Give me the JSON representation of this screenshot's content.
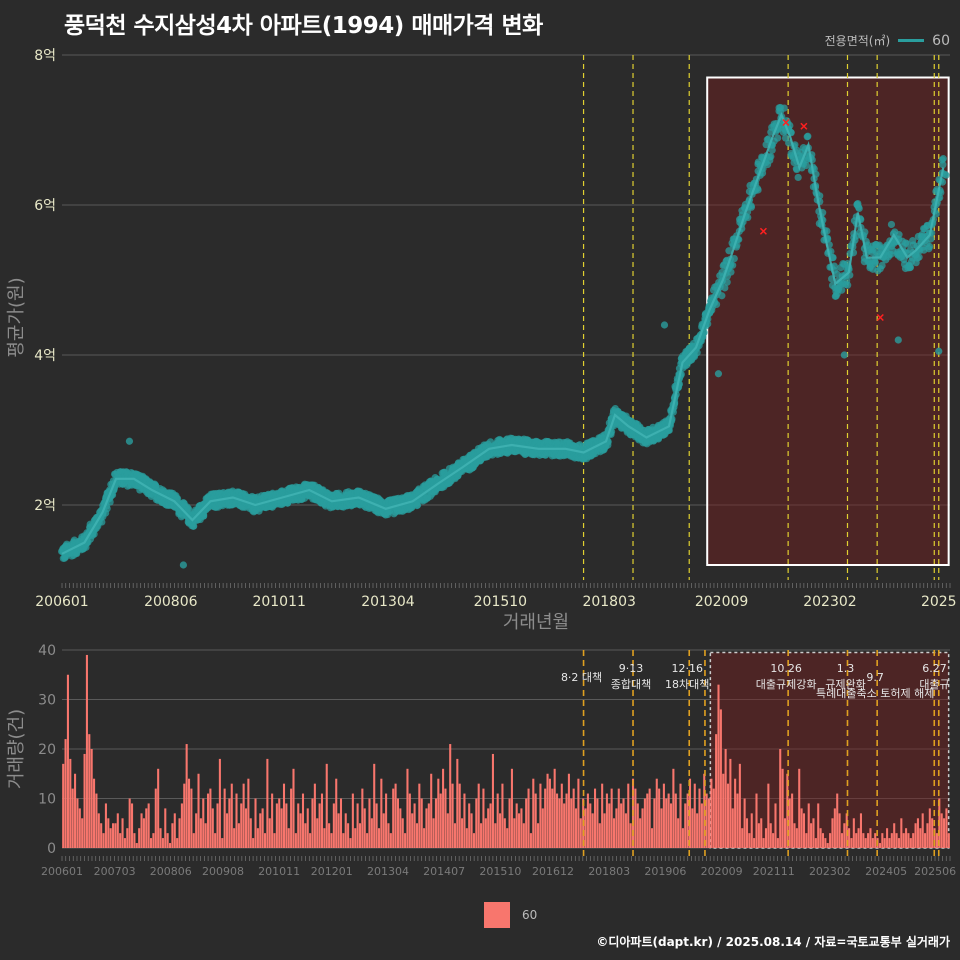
{
  "title": "풍덕천 수지삼성4차 아파트(1994) 매매가격 변화",
  "footer": "©디아파트(dapt.kr) / 2025.08.14 / 자료=국토교통부 실거래가",
  "legend": {
    "title": "전용면적(㎡)",
    "label": "60"
  },
  "chart_data": [
    {
      "type": "scatter",
      "xlabel": "거래년월",
      "ylabel": "평균가(원)",
      "ylim": [
        1.0,
        8.0
      ],
      "yticks": [
        2,
        4,
        6,
        8
      ],
      "ytick_labels": [
        "2억",
        "4억",
        "6억",
        "8억"
      ],
      "xlim": [
        2006.0,
        2025.75
      ],
      "xtick_labels": [
        "200601",
        "200806",
        "201011",
        "201304",
        "201510",
        "201803",
        "202009",
        "202302",
        "2025"
      ],
      "xticks": [
        2006.0,
        2008.42,
        2010.83,
        2013.25,
        2015.75,
        2018.17,
        2020.67,
        2023.08,
        2025.5
      ],
      "series": [
        {
          "name": "60",
          "color": "#2a9e9e",
          "trend": [
            [
              2006.0,
              1.35
            ],
            [
              2006.5,
              1.5
            ],
            [
              2006.9,
              1.9
            ],
            [
              2007.2,
              2.35
            ],
            [
              2007.6,
              2.35
            ],
            [
              2008.0,
              2.2
            ],
            [
              2008.5,
              2.05
            ],
            [
              2008.9,
              1.8
            ],
            [
              2009.3,
              2.05
            ],
            [
              2009.8,
              2.1
            ],
            [
              2010.3,
              2.0
            ],
            [
              2010.9,
              2.1
            ],
            [
              2011.5,
              2.2
            ],
            [
              2012.0,
              2.05
            ],
            [
              2012.6,
              2.1
            ],
            [
              2013.2,
              1.95
            ],
            [
              2013.8,
              2.05
            ],
            [
              2014.4,
              2.3
            ],
            [
              2014.9,
              2.5
            ],
            [
              2015.5,
              2.75
            ],
            [
              2016.0,
              2.8
            ],
            [
              2016.6,
              2.75
            ],
            [
              2017.2,
              2.75
            ],
            [
              2017.6,
              2.7
            ],
            [
              2018.1,
              2.85
            ],
            [
              2018.3,
              3.2
            ],
            [
              2018.6,
              3.05
            ],
            [
              2019.0,
              2.9
            ],
            [
              2019.5,
              3.05
            ],
            [
              2019.8,
              3.9
            ],
            [
              2020.1,
              4.1
            ],
            [
              2020.4,
              4.6
            ],
            [
              2020.7,
              5.0
            ],
            [
              2020.9,
              5.35
            ],
            [
              2021.2,
              5.9
            ],
            [
              2021.5,
              6.4
            ],
            [
              2021.8,
              6.9
            ],
            [
              2022.0,
              7.2
            ],
            [
              2022.2,
              6.9
            ],
            [
              2022.4,
              6.5
            ],
            [
              2022.6,
              6.8
            ],
            [
              2022.8,
              6.1
            ],
            [
              2023.0,
              5.5
            ],
            [
              2023.2,
              4.95
            ],
            [
              2023.5,
              5.1
            ],
            [
              2023.7,
              5.9
            ],
            [
              2023.9,
              5.3
            ],
            [
              2024.2,
              5.3
            ],
            [
              2024.5,
              5.6
            ],
            [
              2024.8,
              5.3
            ],
            [
              2025.0,
              5.4
            ],
            [
              2025.3,
              5.6
            ],
            [
              2025.6,
              6.5
            ]
          ]
        }
      ],
      "outliers": [
        [
          2007.5,
          2.85
        ],
        [
          2008.7,
          1.2
        ],
        [
          2019.4,
          4.4
        ],
        [
          2020.6,
          3.75
        ],
        [
          2023.4,
          4.0
        ],
        [
          2024.6,
          4.2
        ],
        [
          2025.5,
          4.05
        ]
      ],
      "cross_marks": [
        [
          2021.6,
          5.65
        ],
        [
          2022.1,
          7.1
        ],
        [
          2022.5,
          7.05
        ],
        [
          2024.2,
          4.5
        ]
      ],
      "highlight_range": {
        "x": [
          2020.35,
          2025.72
        ],
        "y": [
          1.2,
          7.7
        ]
      },
      "policy_lines": [
        2017.6,
        2018.7,
        2019.95,
        2022.15,
        2023.47,
        2024.13,
        2025.4,
        2025.5
      ],
      "grid": true
    },
    {
      "type": "bar",
      "ylabel": "거래량(건)",
      "ylim": [
        0,
        40
      ],
      "yticks": [
        0,
        10,
        20,
        30,
        40
      ],
      "xtick_labels": [
        "200601",
        "200703",
        "200806",
        "200908",
        "201011",
        "201201",
        "201304",
        "201407",
        "201510",
        "201612",
        "201803",
        "201906",
        "202009",
        "202111",
        "202302",
        "202405",
        "202506"
      ],
      "xticks": [
        2006.0,
        2007.17,
        2008.42,
        2009.58,
        2010.83,
        2012.0,
        2013.25,
        2014.5,
        2015.75,
        2016.92,
        2018.17,
        2019.42,
        2020.67,
        2021.83,
        2023.08,
        2024.33,
        2025.42
      ],
      "series": [
        {
          "name": "60",
          "color": "#f8766d",
          "values": [
            17,
            22,
            35,
            18,
            12,
            15,
            10,
            8,
            6,
            19,
            39,
            23,
            20,
            14,
            11,
            7,
            5,
            3,
            9,
            6,
            4,
            5,
            5,
            7,
            3,
            6,
            2,
            4,
            10,
            9,
            3,
            1,
            4,
            7,
            6,
            8,
            9,
            2,
            3,
            12,
            16,
            4,
            2,
            8,
            3,
            1,
            5,
            7,
            2,
            6,
            9,
            13,
            21,
            14,
            12,
            3,
            7,
            15,
            6,
            10,
            5,
            11,
            12,
            8,
            3,
            9,
            18,
            2,
            12,
            7,
            10,
            13,
            4,
            11,
            5,
            9,
            13,
            8,
            14,
            6,
            2,
            10,
            4,
            7,
            8,
            3,
            18,
            6,
            11,
            3,
            9,
            10,
            8,
            13,
            9,
            4,
            12,
            16,
            3,
            9,
            7,
            11,
            5,
            8,
            3,
            10,
            13,
            6,
            9,
            11,
            4,
            17,
            5,
            3,
            9,
            14,
            7,
            10,
            3,
            7,
            5,
            2,
            11,
            4,
            9,
            5,
            12,
            8,
            3,
            10,
            6,
            17,
            9,
            4,
            14,
            7,
            11,
            5,
            3,
            12,
            13,
            10,
            8,
            6,
            3,
            16,
            11,
            7,
            9,
            5,
            13,
            10,
            4,
            8,
            9,
            15,
            6,
            10,
            14,
            11,
            16,
            12,
            7,
            21,
            13,
            5,
            18,
            13,
            6,
            11,
            4,
            9,
            7,
            3,
            10,
            13,
            5,
            12,
            6,
            8,
            9,
            19,
            5,
            11,
            7,
            13,
            6,
            4,
            10,
            16,
            6,
            9,
            7,
            8,
            5,
            10,
            12,
            3,
            14,
            11,
            5,
            13,
            8,
            12,
            15,
            14,
            12,
            16,
            11,
            10,
            13,
            9,
            11,
            15,
            10,
            12,
            8,
            14,
            6,
            10,
            8,
            11,
            9,
            7,
            12,
            10,
            5,
            13,
            7,
            11,
            9,
            12,
            6,
            8,
            12,
            9,
            10,
            7,
            13,
            5,
            14,
            12,
            9,
            6,
            8,
            10,
            11,
            12,
            4,
            10,
            14,
            12,
            8,
            13,
            10,
            11,
            9,
            16,
            11,
            6,
            13,
            4,
            9,
            11,
            14,
            8,
            13,
            7,
            12,
            9,
            15,
            11,
            10,
            14,
            12,
            23,
            33,
            28,
            15,
            20,
            13,
            18,
            8,
            14,
            11,
            17,
            4,
            10,
            6,
            3,
            7,
            2,
            11,
            5,
            6,
            2,
            4,
            13,
            5,
            3,
            9,
            2,
            20,
            16,
            6,
            15,
            10,
            11,
            5,
            4,
            16,
            8,
            7,
            3,
            9,
            5,
            6,
            2,
            9,
            4,
            3,
            2,
            1,
            3,
            6,
            8,
            11,
            7,
            3,
            5,
            7,
            4,
            2,
            6,
            3,
            4,
            7,
            3,
            2,
            3,
            4,
            2,
            3,
            2,
            1,
            3,
            2,
            4,
            2,
            3,
            5,
            3,
            2,
            6,
            3,
            4,
            3,
            2,
            3,
            5,
            6,
            4,
            7,
            3,
            5,
            8,
            6,
            4,
            3,
            10,
            7,
            6,
            8,
            3
          ]
        }
      ],
      "highlight_range": {
        "x": [
          2020.42,
          2025.72
        ],
        "y": [
          0,
          39.5
        ]
      },
      "policy_lines": [
        2017.6,
        2018.7,
        2019.95,
        2020.3,
        2022.15,
        2023.47,
        2024.13,
        2025.4,
        2025.5
      ],
      "annotations": [
        {
          "x": 2017.6,
          "lines": [
            "8·2 대책"
          ],
          "row": 2
        },
        {
          "x": 2018.7,
          "lines": [
            "9·13",
            "종합대책"
          ],
          "row": 1
        },
        {
          "x": 2019.95,
          "lines": [
            "12·16",
            "18차대책"
          ],
          "row": 1
        },
        {
          "x": 2022.15,
          "lines": [
            "10.26",
            "대출규제강화"
          ],
          "row": 1
        },
        {
          "x": 2023.47,
          "lines": [
            "1.3",
            "규제완화"
          ],
          "row": 1
        },
        {
          "x": 2024.13,
          "lines": [
            "9.7",
            "특례대출축소 토허제 해제"
          ],
          "row": 2
        },
        {
          "x": 2025.45,
          "lines": [
            "6.27",
            "대출규"
          ],
          "row": 1
        }
      ],
      "grid": true
    }
  ]
}
